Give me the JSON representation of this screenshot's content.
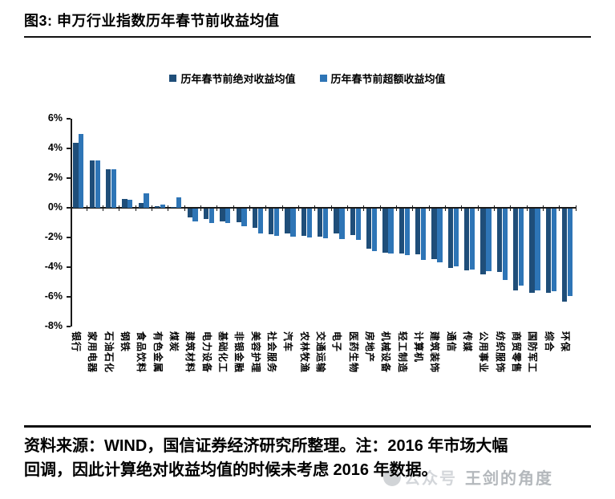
{
  "figure": {
    "title": "图3: 申万行业指数历年春节前收益均值"
  },
  "chart_data": {
    "type": "bar",
    "title": "图3: 申万行业指数历年春节前收益均值",
    "categories": [
      "银行",
      "家用电器",
      "石油石化",
      "钢铁",
      "食品饮料",
      "有色金属",
      "煤炭",
      "建筑材料",
      "电力设备",
      "基础化工",
      "非银金融",
      "美容护理",
      "社会服务",
      "汽车",
      "农林牧渔",
      "交通运输",
      "电子",
      "医药生物",
      "房地产",
      "机械设备",
      "轻工制造",
      "计算机",
      "建筑装饰",
      "通信",
      "传媒",
      "公用事业",
      "纺织服饰",
      "商贸零售",
      "国防军工",
      "综合",
      "环保"
    ],
    "series": [
      {
        "name": "历年春节前绝对收益均值",
        "color": "#1F4E79",
        "values": [
          4.4,
          3.2,
          2.6,
          0.6,
          0.3,
          0.1,
          0.05,
          -0.6,
          -0.7,
          -0.9,
          -0.95,
          -1.3,
          -1.75,
          -1.7,
          -1.85,
          -1.9,
          -1.7,
          -1.8,
          -2.7,
          -3.0,
          -3.05,
          -3.1,
          -3.4,
          -4.0,
          -4.2,
          -4.45,
          -4.3,
          -5.5,
          -5.7,
          -5.7,
          -6.3
        ]
      },
      {
        "name": "历年春节前超额收益均值",
        "color": "#2E75B6",
        "values": [
          5.0,
          3.2,
          2.6,
          0.55,
          1.0,
          0.2,
          0.7,
          -0.9,
          -1.0,
          -1.0,
          -1.2,
          -1.7,
          -1.85,
          -1.9,
          -1.95,
          -2.0,
          -2.05,
          -2.1,
          -2.9,
          -3.05,
          -3.15,
          -3.45,
          -3.65,
          -3.9,
          -4.1,
          -4.25,
          -4.85,
          -5.2,
          -5.55,
          -5.6,
          -5.9
        ]
      }
    ],
    "ylim": [
      -8,
      6
    ],
    "yticks": [
      "6%",
      "4%",
      "2%",
      "0%",
      "-2%",
      "-4%",
      "-6%",
      "-8%"
    ],
    "xlabel": "",
    "ylabel": "",
    "grid": false,
    "legend_position": "top-center"
  },
  "footer": {
    "line1": "资料来源：WIND，国信证券经济研究所整理。注：2016 年市场大幅",
    "line2": "回调，因此计算绝对收益均值的时候未考虑 2016 年数据。"
  },
  "watermark": {
    "badge_label": "公众号",
    "name": "王剑的角度"
  }
}
